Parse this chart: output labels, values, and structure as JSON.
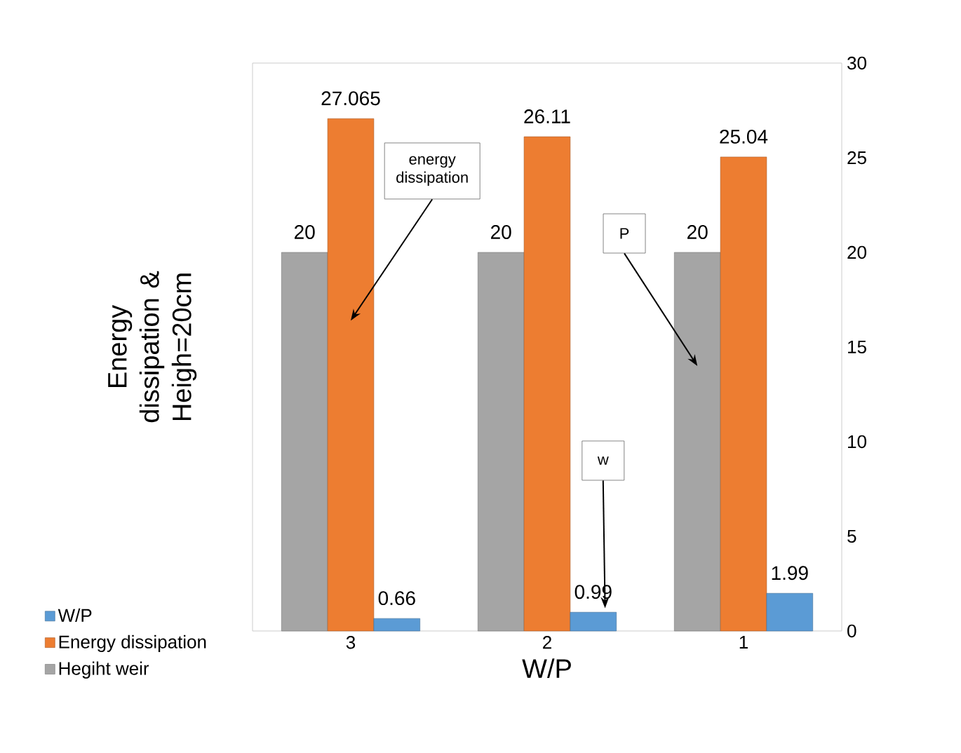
{
  "chart_data": {
    "type": "bar",
    "xlabel": "W/P",
    "ylabel": "Energy dissipation & Heigh=20cm",
    "categories": [
      "3",
      "2",
      "1"
    ],
    "series": [
      {
        "name": "Hegiht weir",
        "color": "#a5a5a5",
        "values": [
          20,
          20,
          20
        ]
      },
      {
        "name": "Energy dissipation",
        "color": "#ed7d31",
        "values": [
          27.065,
          26.11,
          25.04
        ]
      },
      {
        "name": "W/P",
        "color": "#5b9bd5",
        "values": [
          0.66,
          0.99,
          1.99
        ]
      }
    ],
    "ylim": [
      0,
      30
    ],
    "yticks": [
      0,
      5,
      10,
      15,
      20,
      25,
      30
    ],
    "data_labels": true,
    "legend": "bottom left",
    "grid": false,
    "annotations": [
      "energy dissipation",
      "w",
      "P"
    ]
  }
}
